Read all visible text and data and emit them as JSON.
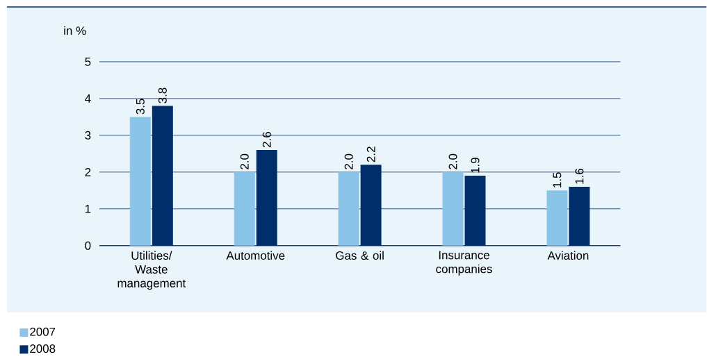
{
  "chart_data": {
    "type": "bar",
    "ylabel": "in %",
    "categories": [
      "Utilities/ Waste management",
      "Automotive",
      "Gas & oil",
      "Insurance companies",
      "Aviation"
    ],
    "series": [
      {
        "name": "2007",
        "color": "#8ac5e9",
        "values": [
          3.5,
          2.0,
          2.0,
          2.0,
          1.5
        ],
        "value_labels": [
          "3.5",
          "2.0",
          "2.0",
          "2.0",
          "1.5"
        ]
      },
      {
        "name": "2008",
        "color": "#002e6b",
        "values": [
          3.8,
          2.6,
          2.2,
          1.9,
          1.6
        ],
        "value_labels": [
          "3.8",
          "2.6",
          "2.2",
          "1.9",
          "1.6"
        ]
      }
    ],
    "ylim": [
      0,
      5
    ],
    "yticks": [
      0,
      1,
      2,
      3,
      4,
      5
    ],
    "grid": "y",
    "legend": "bottom left"
  }
}
